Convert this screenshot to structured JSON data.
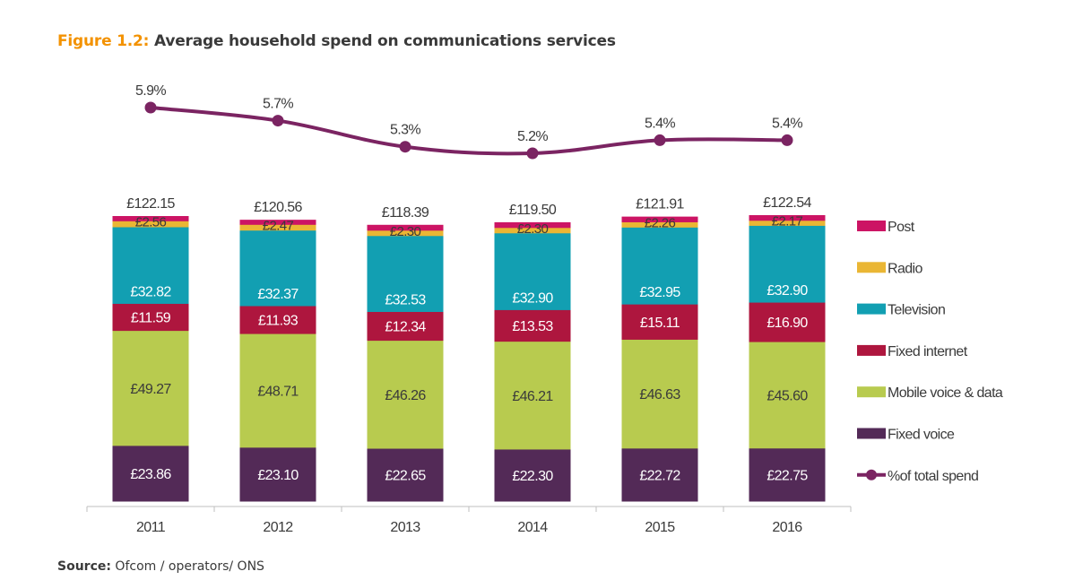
{
  "figure": {
    "number": "Figure 1.2:",
    "title": "Average household spend on communications services"
  },
  "source": {
    "label": "Source:",
    "text": "Ofcom / operators/ ONS"
  },
  "chart_data": {
    "type": "bar",
    "stacked": true,
    "title": "Average household spend on communications services",
    "xlabel": "",
    "ylabel": "",
    "categories": [
      "2011",
      "2012",
      "2013",
      "2014",
      "2015",
      "2016"
    ],
    "totals": [
      "£122.15",
      "£120.56",
      "£118.39",
      "£119.50",
      "£121.91",
      "£122.54"
    ],
    "total_values": [
      122.15,
      120.56,
      118.39,
      119.5,
      121.91,
      122.54
    ],
    "currency_prefix": "£",
    "series": [
      {
        "name": "Fixed voice",
        "color": "#532a57",
        "label_color": "#ffffff",
        "values": [
          23.86,
          23.1,
          22.65,
          22.3,
          22.72,
          22.75
        ],
        "labeled": true
      },
      {
        "name": "Mobile voice & data",
        "color": "#b8cb4f",
        "label_color": "#3a3a3a",
        "values": [
          49.27,
          48.71,
          46.26,
          46.21,
          46.63,
          45.6
        ],
        "labeled": true
      },
      {
        "name": "Fixed internet",
        "color": "#ae163e",
        "label_color": "#ffffff",
        "values": [
          11.59,
          11.93,
          12.34,
          13.53,
          15.11,
          16.9
        ],
        "labeled": true
      },
      {
        "name": "Television",
        "color": "#129fb2",
        "label_color": "#ffffff",
        "values": [
          32.82,
          32.37,
          32.53,
          32.9,
          32.95,
          32.9
        ],
        "labeled": true
      },
      {
        "name": "Radio",
        "color": "#eab634",
        "label_color": "#3a3a3a",
        "values": [
          2.56,
          2.47,
          2.3,
          2.3,
          2.26,
          2.17
        ],
        "labeled": true
      },
      {
        "name": "Post",
        "color": "#cc1464",
        "label_color": "#3a3a3a",
        "values": [
          2.05,
          1.98,
          2.31,
          2.26,
          2.24,
          2.22
        ],
        "labeled": false
      }
    ],
    "line_series": {
      "name": "% of total spend",
      "legend_label": "%of total spend",
      "color": "#7b2462",
      "values": [
        5.9,
        5.7,
        5.3,
        5.2,
        5.4,
        5.4
      ],
      "labels": [
        "5.9%",
        "5.7%",
        "5.3%",
        "5.2%",
        "5.4%",
        "5.4%"
      ]
    },
    "legend": {
      "placement": "right",
      "items": [
        {
          "name": "Post",
          "label": "Post",
          "color": "#cc1464",
          "kind": "box"
        },
        {
          "name": "Radio",
          "label": "Radio",
          "color": "#eab634",
          "kind": "box"
        },
        {
          "name": "Television",
          "label": "Television",
          "color": "#129fb2",
          "kind": "box"
        },
        {
          "name": "Fixed internet",
          "label": "Fixed internet",
          "color": "#ae163e",
          "kind": "box"
        },
        {
          "name": "Mobile voice & data",
          "label": "Mobile voice & data",
          "color": "#b8cb4f",
          "kind": "box"
        },
        {
          "name": "Fixed voice",
          "label": "Fixed voice",
          "color": "#532a57",
          "kind": "box"
        },
        {
          "name": "% of total spend",
          "label": "%of total spend",
          "color": "#7b2462",
          "kind": "line"
        }
      ]
    },
    "ylim": [
      0,
      125
    ],
    "line_ylim": [
      4.6,
      6.0
    ],
    "grid": false,
    "y_axis_visible": false
  }
}
